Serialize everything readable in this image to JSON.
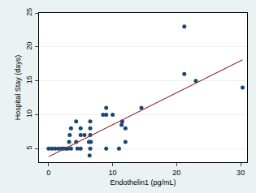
{
  "chart_data": {
    "type": "scatter",
    "x_label": "Endothelin1 (pg/mL)",
    "y_label": "Hospital Stay (days)",
    "xlim": [
      -1.5,
      31
    ],
    "ylim": [
      3,
      25
    ],
    "xticks": [
      0,
      10,
      20,
      30
    ],
    "yticks": [
      5,
      10,
      15,
      20,
      25
    ],
    "grid": true,
    "series": [
      {
        "type": "scatter",
        "marker": "circle",
        "color": "#1a476f",
        "x": [
          0,
          0.5,
          1,
          1.5,
          2,
          2.3,
          2.7,
          3,
          3.5,
          4.5,
          5,
          6.5,
          9,
          11,
          3.2,
          4.3,
          6.3,
          6.6,
          3.3,
          5,
          5.6,
          6.5,
          3.5,
          5,
          6.5,
          4.3,
          6.5,
          11.5,
          9,
          10,
          8.5,
          12,
          9,
          12,
          14.5,
          6.4,
          11.4,
          21.2,
          21.2,
          23,
          30.3
        ],
        "values": [
          5,
          5,
          5,
          5,
          5,
          5,
          5,
          5,
          5,
          5,
          5,
          5,
          5,
          5,
          6,
          6,
          6,
          6,
          7,
          7,
          7,
          7,
          8,
          8,
          8,
          9,
          9,
          9,
          10,
          10,
          10,
          8,
          11,
          6,
          11,
          4,
          8.5,
          23,
          16,
          15,
          14
        ]
      },
      {
        "type": "line",
        "line_style": "solid",
        "color": "#90353b",
        "x": [
          0,
          30.3
        ],
        "values": [
          3.8,
          18.1
        ]
      }
    ]
  }
}
